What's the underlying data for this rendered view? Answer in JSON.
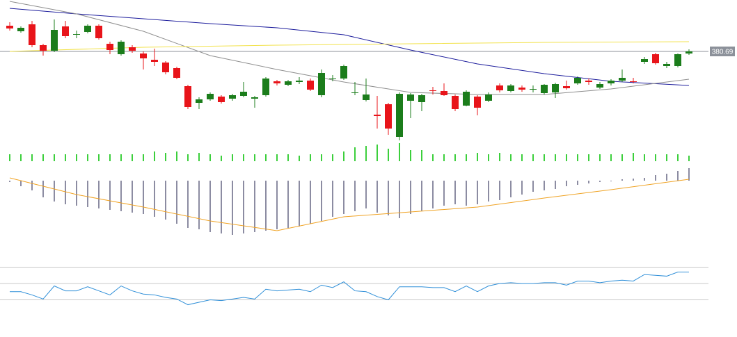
{
  "chart_data": [
    {
      "type": "candlestick",
      "categories": [
        null,
        null,
        null,
        null,
        null,
        null,
        null,
        null,
        null,
        null,
        null,
        null,
        null,
        null,
        null,
        null,
        null,
        null,
        null,
        null,
        null,
        null,
        null,
        null,
        null,
        null,
        null,
        null,
        null,
        null,
        null,
        null,
        null,
        null,
        null,
        null,
        null,
        null,
        null,
        null,
        null,
        null,
        null,
        null,
        null,
        null,
        null,
        null,
        null,
        null,
        null,
        null,
        null,
        null,
        null,
        null,
        null,
        null,
        null,
        null,
        null,
        null
      ],
      "open": [
        382.54,
        382.14,
        382.64,
        381.14,
        380.74,
        382.49,
        381.89,
        382.09,
        382.54,
        381.24,
        380.49,
        380.99,
        380.54,
        380.09,
        379.89,
        379.49,
        378.19,
        376.99,
        377.24,
        377.44,
        377.29,
        377.49,
        377.29,
        377.54,
        378.54,
        378.29,
        378.49,
        378.59,
        377.54,
        378.74,
        378.74,
        377.74,
        377.19,
        376.14,
        376.89,
        374.54,
        377.14,
        377.04,
        377.89,
        377.84,
        377.49,
        376.79,
        377.44,
        377.14,
        378.24,
        377.84,
        378.09,
        377.99,
        377.69,
        377.74,
        378.19,
        378.39,
        378.59,
        378.09,
        378.39,
        378.59,
        378.54,
        379.94,
        380.49,
        379.64,
        379.64,
        380.54
      ],
      "high": [
        382.79,
        382.49,
        382.89,
        381.24,
        382.99,
        382.89,
        382.19,
        382.64,
        382.64,
        381.39,
        381.49,
        381.14,
        380.69,
        380.89,
        379.99,
        379.59,
        378.29,
        377.39,
        377.74,
        377.54,
        377.64,
        378.49,
        377.49,
        378.84,
        378.64,
        378.64,
        378.84,
        378.74,
        379.39,
        378.99,
        379.74,
        378.49,
        378.74,
        377.49,
        376.99,
        377.74,
        377.69,
        377.64,
        378.14,
        378.39,
        377.59,
        377.89,
        377.54,
        377.74,
        378.39,
        378.34,
        378.24,
        378.24,
        378.34,
        378.44,
        378.59,
        378.89,
        378.74,
        378.49,
        378.69,
        379.39,
        378.79,
        380.29,
        380.59,
        379.94,
        380.54,
        380.84
      ],
      "low": [
        382.19,
        382.04,
        380.99,
        380.39,
        380.64,
        381.64,
        381.64,
        381.99,
        381.54,
        380.49,
        380.39,
        380.59,
        379.39,
        379.64,
        379.04,
        378.69,
        376.54,
        376.54,
        377.14,
        376.94,
        377.14,
        377.39,
        376.64,
        377.44,
        378.24,
        378.19,
        378.34,
        377.84,
        377.39,
        378.54,
        378.64,
        377.54,
        377.09,
        375.14,
        374.69,
        374.29,
        375.89,
        376.39,
        377.59,
        377.49,
        376.39,
        376.74,
        376.09,
        377.04,
        377.74,
        377.74,
        377.79,
        377.74,
        377.59,
        377.34,
        377.94,
        378.29,
        378.29,
        377.99,
        378.24,
        378.49,
        378.39,
        379.79,
        379.74,
        379.49,
        379.54,
        380.44
      ],
      "close": [
        382.34,
        382.39,
        381.14,
        380.74,
        382.24,
        381.79,
        381.94,
        382.54,
        381.64,
        380.79,
        381.39,
        380.74,
        380.19,
        379.94,
        379.19,
        378.79,
        376.69,
        377.24,
        377.64,
        377.04,
        377.54,
        377.79,
        377.39,
        378.74,
        378.39,
        378.54,
        378.59,
        377.94,
        379.14,
        378.74,
        379.64,
        377.74,
        377.59,
        376.04,
        375.14,
        377.64,
        377.59,
        377.54,
        377.84,
        377.54,
        376.54,
        377.79,
        376.64,
        377.59,
        377.89,
        378.24,
        377.94,
        377.99,
        378.29,
        378.34,
        378.04,
        378.79,
        378.49,
        378.34,
        378.59,
        378.79,
        378.49,
        380.14,
        379.84,
        379.79,
        380.49,
        380.69
      ],
      "up_color": "#1b7d1b",
      "down_color": "#e8141a",
      "ylim": [
        374.14,
        384.39
      ],
      "last_price": 380.69,
      "last_price_color": "#8c919a",
      "lines": [
        {
          "color": "#1c1c9c",
          "x": [
            0,
            6,
            12,
            18,
            24,
            30,
            36,
            42,
            48,
            54,
            61
          ],
          "values": [
            383.79,
            383.39,
            383.04,
            382.69,
            382.39,
            381.89,
            380.79,
            379.79,
            379.09,
            378.54,
            378.24
          ]
        },
        {
          "color": "#8e8e8e",
          "x": [
            0,
            6,
            12,
            18,
            24,
            30,
            36,
            42,
            48,
            54,
            61
          ],
          "values": [
            384.29,
            383.39,
            382.14,
            380.39,
            379.39,
            378.49,
            377.74,
            377.59,
            377.59,
            377.99,
            378.69
          ]
        },
        {
          "color": "#f2e24a",
          "x": [
            0,
            12,
            24,
            36,
            48,
            61
          ],
          "values": [
            380.69,
            380.99,
            381.14,
            381.24,
            381.34,
            381.39
          ]
        }
      ]
    },
    {
      "type": "bar",
      "categories": [
        null,
        null,
        null,
        null,
        null,
        null,
        null,
        null,
        null,
        null,
        null,
        null,
        null,
        null,
        null,
        null,
        null,
        null,
        null,
        null,
        null,
        null,
        null,
        null,
        null,
        null,
        null,
        null,
        null,
        null,
        null,
        null,
        null,
        null,
        null,
        null,
        null,
        null,
        null,
        null,
        null,
        null,
        null,
        null,
        null,
        null,
        null,
        null,
        null,
        null,
        null,
        null,
        null,
        null,
        null,
        null,
        null,
        null,
        null,
        null,
        null,
        null
      ],
      "values": [
        10,
        10,
        10,
        10,
        10,
        10,
        10,
        10,
        10,
        10,
        10,
        10,
        10,
        14,
        12,
        14,
        10,
        12,
        10,
        8,
        10,
        10,
        10,
        10,
        10,
        10,
        8,
        10,
        10,
        10,
        14,
        20,
        22,
        24,
        18,
        26,
        16,
        16,
        10,
        10,
        10,
        10,
        12,
        10,
        12,
        10,
        10,
        10,
        10,
        10,
        10,
        10,
        10,
        10,
        10,
        10,
        12,
        10,
        10,
        10,
        10,
        8
      ],
      "color": "#3ccf3c",
      "ylim": [
        0,
        32
      ]
    },
    {
      "type": "macd",
      "categories": [
        null,
        null,
        null,
        null,
        null,
        null,
        null,
        null,
        null,
        null,
        null,
        null,
        null,
        null,
        null,
        null,
        null,
        null,
        null,
        null,
        null,
        null,
        null,
        null,
        null,
        null,
        null,
        null,
        null,
        null,
        null,
        null,
        null,
        null,
        null,
        null,
        null,
        null,
        null,
        null,
        null,
        null,
        null,
        null,
        null,
        null,
        null,
        null,
        null,
        null,
        null,
        null,
        null,
        null,
        null,
        null,
        null,
        null,
        null,
        null,
        null,
        null
      ],
      "values": [
        -2,
        -8,
        -14,
        -24,
        -30,
        -34,
        -36,
        -38,
        -40,
        -42,
        -44,
        -46,
        -48,
        -52,
        -56,
        -62,
        -68,
        -70,
        -74,
        -76,
        -78,
        -76,
        -74,
        -72,
        -70,
        -68,
        -66,
        -62,
        -58,
        -52,
        -48,
        -44,
        -40,
        -46,
        -50,
        -54,
        -48,
        -44,
        -40,
        -36,
        -34,
        -36,
        -34,
        -30,
        -28,
        -24,
        -20,
        -16,
        -14,
        -12,
        -8,
        -6,
        -4,
        -2,
        -1,
        2,
        3,
        4,
        8,
        10,
        14,
        18
      ],
      "color": "#1a1a44",
      "signal": {
        "color": "#f0a324",
        "x": [
          0,
          6,
          12,
          18,
          24,
          30,
          36,
          42,
          48,
          54,
          61
        ],
        "values": [
          4,
          -20,
          -38,
          -58,
          -72,
          -52,
          -45,
          -38,
          -25,
          -13,
          2
        ]
      },
      "ylim": [
        -80,
        20
      ]
    },
    {
      "type": "line",
      "categories": [
        null,
        null,
        null,
        null,
        null,
        null,
        null,
        null,
        null,
        null,
        null,
        null,
        null,
        null,
        null,
        null,
        null,
        null,
        null,
        null,
        null,
        null,
        null,
        null,
        null,
        null,
        null,
        null,
        null,
        null,
        null,
        null,
        null,
        null,
        null,
        null,
        null,
        null,
        null,
        null,
        null,
        null,
        null,
        null,
        null,
        null,
        null,
        null,
        null,
        null,
        null,
        null,
        null,
        null,
        null,
        null,
        null,
        null,
        null,
        null,
        null,
        null
      ],
      "values": [
        40,
        40,
        36,
        31,
        47,
        41,
        41,
        46,
        41,
        36,
        47,
        41,
        37,
        36,
        33,
        31,
        24,
        27,
        30,
        29,
        31,
        33,
        31,
        43,
        41,
        42,
        43,
        40,
        48,
        45,
        52,
        41,
        40,
        34,
        30,
        46,
        46,
        46,
        45,
        45,
        40,
        47,
        40,
        47,
        50,
        51,
        50,
        50,
        51,
        51,
        48,
        53,
        53,
        51,
        53,
        54,
        53,
        61,
        60,
        59,
        64,
        64
      ],
      "color": "#2f8fd8",
      "levels": [
        70,
        50,
        30
      ],
      "ylim": [
        18.5,
        78.1
      ]
    }
  ]
}
